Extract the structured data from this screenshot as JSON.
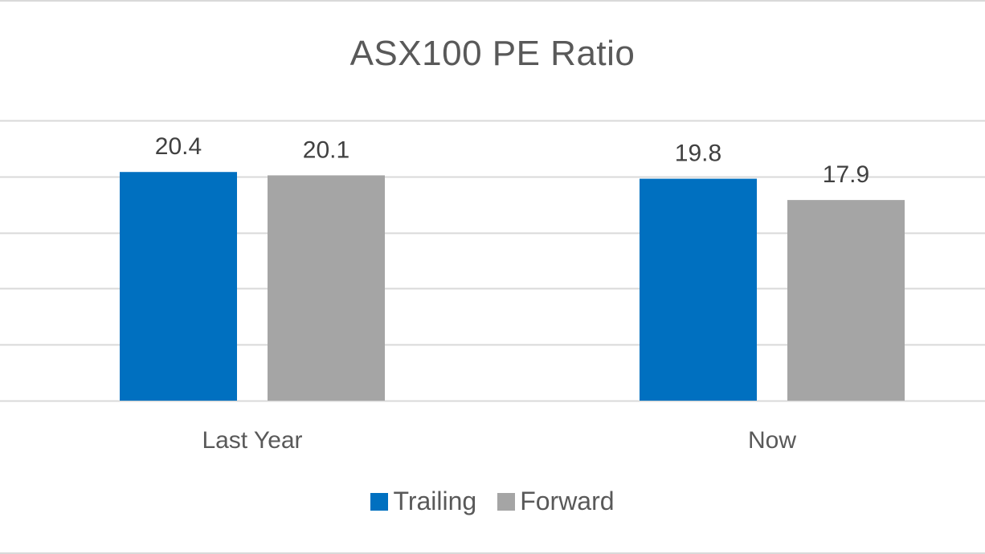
{
  "chart_data": {
    "type": "bar",
    "title": "ASX100 PE Ratio",
    "categories": [
      "Last Year",
      "Now"
    ],
    "series": [
      {
        "name": "Trailing",
        "values": [
          20.4,
          19.8
        ],
        "labels": [
          "20.4",
          "19.8"
        ],
        "color": "#0070c0"
      },
      {
        "name": "Forward",
        "values": [
          20.1,
          17.9
        ],
        "labels": [
          "20.1",
          "17.9"
        ],
        "color": "#a5a5a5"
      }
    ],
    "ylim": [
      0,
      25
    ],
    "gridlines": [
      0,
      5,
      10,
      15,
      20,
      25
    ],
    "grid": true,
    "legend_position": "bottom"
  }
}
